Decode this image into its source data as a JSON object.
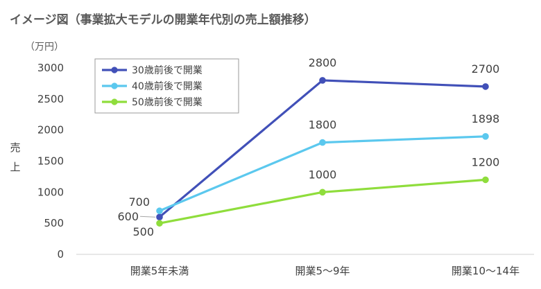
{
  "chart_data": {
    "type": "line",
    "title": "イメージ図（事業拡大モデルの開業年代別の売上額推移）",
    "unit_label": "（万円）",
    "ylabel": "売上",
    "categories": [
      "開業5年未満",
      "開業5～9年",
      "開業10～14年"
    ],
    "ylim": [
      0,
      3000
    ],
    "yticks": [
      0,
      500,
      1000,
      1500,
      2000,
      2500,
      3000
    ],
    "grid": false,
    "legend_position": "top-left",
    "series": [
      {
        "name": "30歳前後で開業",
        "color": "#4150b8",
        "values": [
          600,
          2800,
          2700
        ]
      },
      {
        "name": "40歳前後で開業",
        "color": "#5bc8ee",
        "values": [
          700,
          1800,
          1898
        ]
      },
      {
        "name": "50歳前後で開業",
        "color": "#8fdd3c",
        "values": [
          500,
          1000,
          1200
        ]
      }
    ]
  }
}
